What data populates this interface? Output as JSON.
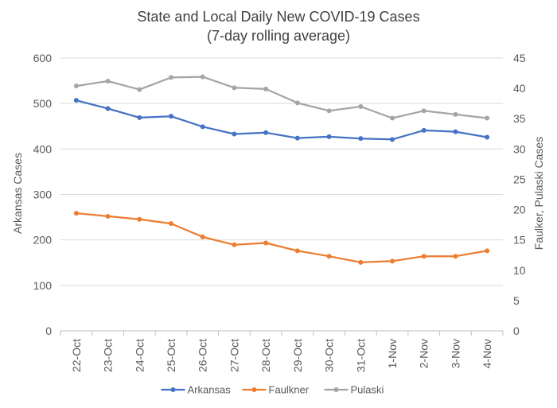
{
  "chart_data": {
    "type": "line",
    "title": "State and Local Daily New COVID-19 Cases",
    "subtitle": "(7-day rolling average)",
    "categories": [
      "22-Oct",
      "23-Oct",
      "24-Oct",
      "25-Oct",
      "26-Oct",
      "27-Oct",
      "28-Oct",
      "29-Oct",
      "30-Oct",
      "31-Oct",
      "1-Nov",
      "2-Nov",
      "3-Nov",
      "4-Nov"
    ],
    "ylabel": "Arkansas Cases",
    "y2label": "Faulker, Pulaski Cases",
    "ylim": [
      0,
      600
    ],
    "y2lim": [
      0,
      45
    ],
    "yticks": [
      "0",
      "100",
      "200",
      "300",
      "400",
      "500",
      "600"
    ],
    "y2ticks": [
      "0",
      "5",
      "10",
      "15",
      "20",
      "25",
      "30",
      "35",
      "40",
      "45"
    ],
    "grid": true,
    "legend_position": "bottom",
    "series": [
      {
        "name": "Arkansas",
        "axis": "left",
        "color": "#4472C4",
        "values": [
          507,
          489,
          469,
          472,
          449,
          433,
          436,
          424,
          427,
          423,
          421,
          441,
          438,
          426
        ]
      },
      {
        "name": "Faulkner",
        "axis": "right",
        "color": "#ED7D31",
        "values": [
          19.4,
          18.9,
          18.4,
          17.7,
          15.5,
          14.2,
          14.5,
          13.2,
          12.3,
          11.3,
          11.5,
          12.3,
          12.3,
          13.2
        ]
      },
      {
        "name": "Pulaski",
        "axis": "right",
        "color": "#A5A5A5",
        "values": [
          40.4,
          41.2,
          39.8,
          41.8,
          41.9,
          40.1,
          39.9,
          37.6,
          36.3,
          37.0,
          35.1,
          36.3,
          35.7,
          35.1
        ]
      }
    ]
  }
}
